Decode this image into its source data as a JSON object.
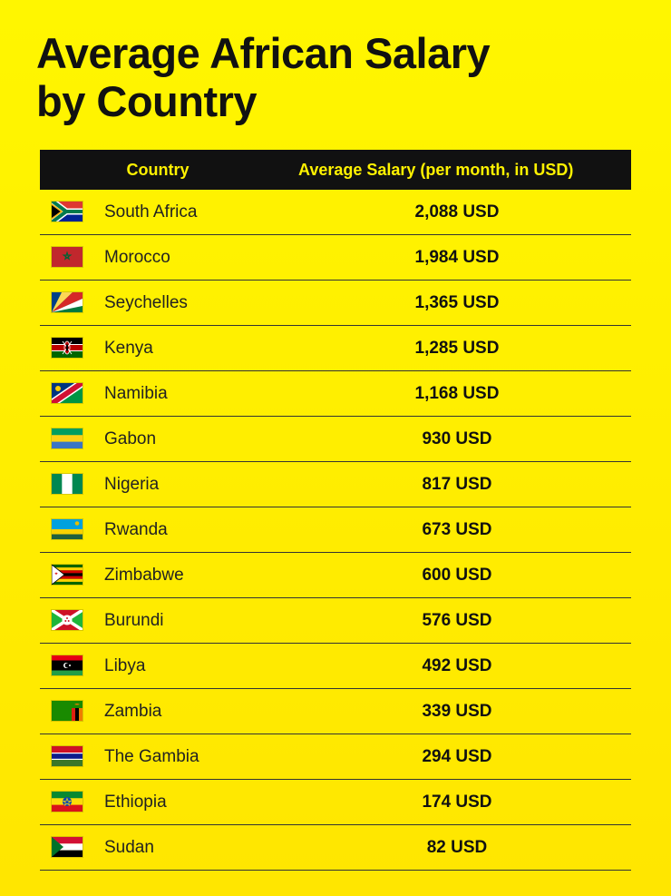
{
  "title_lines": [
    "Average African Salary",
    "by Country"
  ],
  "header": {
    "country": "Country",
    "salary": "Average Salary (per month, in USD)"
  },
  "chart_data": {
    "type": "table",
    "title": "Average African Salary by Country",
    "columns": [
      "Country",
      "Average Salary (per month, in USD)"
    ],
    "unit": "USD",
    "rows": [
      {
        "country": "South Africa",
        "salary": "2,088 USD",
        "value": 2088,
        "flag_icon": "south-africa-flag-icon"
      },
      {
        "country": "Morocco",
        "salary": "1,984 USD",
        "value": 1984,
        "flag_icon": "morocco-flag-icon"
      },
      {
        "country": "Seychelles",
        "salary": "1,365 USD",
        "value": 1365,
        "flag_icon": "seychelles-flag-icon"
      },
      {
        "country": "Kenya",
        "salary": "1,285 USD",
        "value": 1285,
        "flag_icon": "kenya-flag-icon"
      },
      {
        "country": "Namibia",
        "salary": "1,168 USD",
        "value": 1168,
        "flag_icon": "namibia-flag-icon"
      },
      {
        "country": "Gabon",
        "salary": "930 USD",
        "value": 930,
        "flag_icon": "gabon-flag-icon"
      },
      {
        "country": "Nigeria",
        "salary": "817 USD",
        "value": 817,
        "flag_icon": "nigeria-flag-icon"
      },
      {
        "country": "Rwanda",
        "salary": "673 USD",
        "value": 673,
        "flag_icon": "rwanda-flag-icon"
      },
      {
        "country": "Zimbabwe",
        "salary": "600 USD",
        "value": 600,
        "flag_icon": "zimbabwe-flag-icon"
      },
      {
        "country": "Burundi",
        "salary": "576 USD",
        "value": 576,
        "flag_icon": "burundi-flag-icon"
      },
      {
        "country": "Libya",
        "salary": "492 USD",
        "value": 492,
        "flag_icon": "libya-flag-icon"
      },
      {
        "country": "Zambia",
        "salary": "339 USD",
        "value": 339,
        "flag_icon": "zambia-flag-icon"
      },
      {
        "country": "The Gambia",
        "salary": "294 USD",
        "value": 294,
        "flag_icon": "gambia-flag-icon"
      },
      {
        "country": "Ethiopia",
        "salary": "174 USD",
        "value": 174,
        "flag_icon": "ethiopia-flag-icon"
      },
      {
        "country": "Sudan",
        "salary": "82 USD",
        "value": 82,
        "flag_icon": "sudan-flag-icon"
      }
    ]
  },
  "colors": {
    "background": "#ffef00",
    "header_background": "#111111",
    "header_text": "#fff200"
  }
}
